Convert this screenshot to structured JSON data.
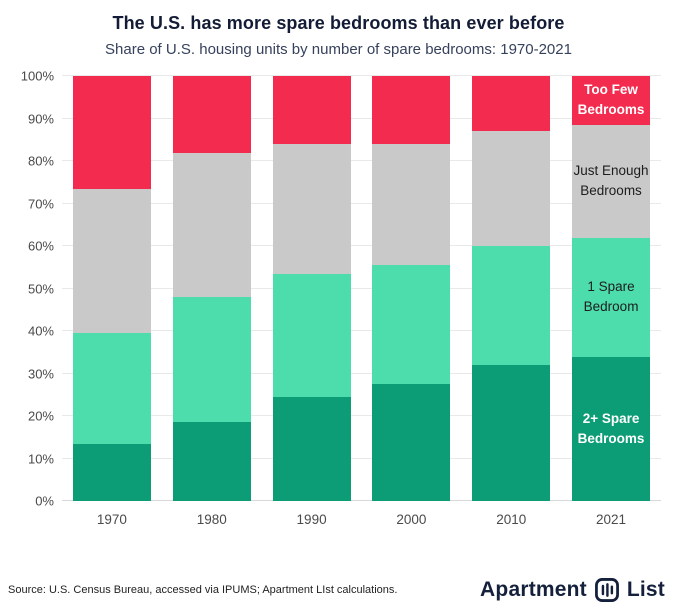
{
  "header": {
    "title": "The U.S. has more spare bedrooms than ever before",
    "subtitle": "Share of U.S. housing units by number of spare bedrooms: 1970-2021"
  },
  "colors": {
    "brand_navy": "#14203c",
    "red": "#f32b4f",
    "gray": "#c9c9c9",
    "mint": "#4ddcab",
    "dark_green": "#0d9d76"
  },
  "chart_data": {
    "type": "bar",
    "stacked": true,
    "percent": true,
    "title": "The U.S. has more spare bedrooms than ever before",
    "subtitle": "Share of U.S. housing units by number of spare bedrooms: 1970-2021",
    "categories": [
      "1970",
      "1980",
      "1990",
      "2000",
      "2010",
      "2021"
    ],
    "series": [
      {
        "name": "2+ Spare Bedrooms",
        "color": "#0d9d76",
        "label_color": "#ffffff",
        "label_bold": true,
        "values": [
          13.5,
          18.5,
          24.5,
          27.5,
          32.0,
          34.0
        ]
      },
      {
        "name": "1 Spare Bedroom",
        "color": "#4ddcab",
        "label_color": "#1d1d1d",
        "label_bold": false,
        "values": [
          26.0,
          29.5,
          29.0,
          28.0,
          28.0,
          28.0
        ]
      },
      {
        "name": "Just Enough Bedrooms",
        "color": "#c9c9c9",
        "label_color": "#1d1d1d",
        "label_bold": false,
        "values": [
          34.0,
          34.0,
          30.5,
          28.5,
          27.0,
          26.5
        ]
      },
      {
        "name": "Too Few Bedrooms",
        "color": "#f32b4f",
        "label_color": "#ffffff",
        "label_bold": true,
        "values": [
          26.5,
          18.0,
          16.0,
          16.0,
          13.0,
          11.5
        ]
      }
    ],
    "xlabel": "",
    "ylabel": "",
    "ylim": [
      0,
      100
    ],
    "ytick_step": 10,
    "ytick_labels": [
      "0%",
      "10%",
      "20%",
      "30%",
      "40%",
      "50%",
      "60%",
      "70%",
      "80%",
      "90%",
      "100%"
    ],
    "grid": true,
    "legend_position": "labels-on-last-bar"
  },
  "footer": {
    "source": "Source: U.S. Census Bureau, accessed via IPUMS; Apartment LIst calculations.",
    "logo_text_1": "Apartment",
    "logo_text_2": "List"
  }
}
